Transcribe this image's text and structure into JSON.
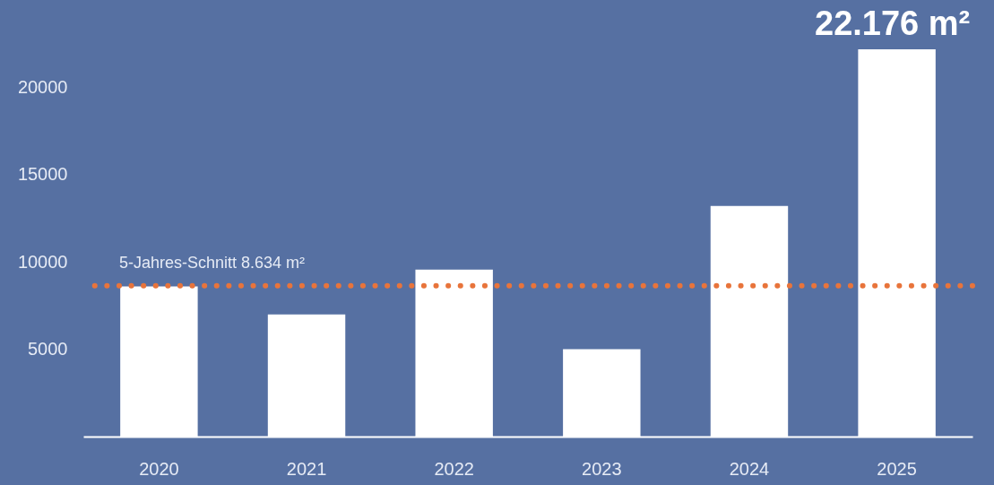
{
  "chart_data": {
    "type": "bar",
    "categories": [
      "2020",
      "2021",
      "2022",
      "2023",
      "2024",
      "2025"
    ],
    "values": [
      8600,
      7000,
      9560,
      5000,
      13200,
      22176
    ],
    "color": "#ffffff",
    "ylim": [
      0,
      25000
    ],
    "yticks": [
      5000,
      10000,
      15000,
      20000
    ],
    "ref_lines": [
      {
        "axis": "y",
        "value": 8634,
        "label": "5-Jahres-Schnitt 8.634 m²",
        "color": "#e8743b",
        "line_style": "dotted"
      }
    ],
    "annotations": [
      {
        "text": "22.176 m²",
        "x": "2025",
        "y": 22176
      }
    ]
  }
}
